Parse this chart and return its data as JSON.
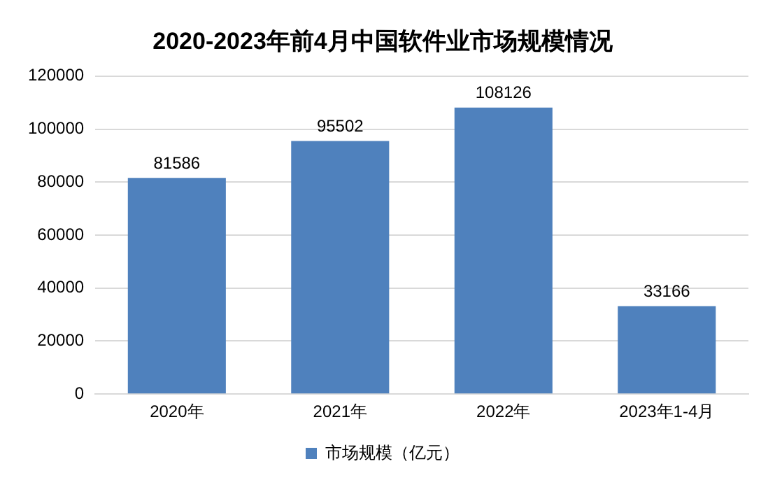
{
  "chart_data": {
    "type": "bar",
    "title": "2020-2023年前4月中国软件业市场规模情况",
    "categories": [
      "2020年",
      "2021年",
      "2022年",
      "2023年1-4月"
    ],
    "series": [
      {
        "name": "市场规模（亿元）",
        "color": "#4f81bd",
        "values": [
          81586,
          95502,
          108126,
          33166
        ]
      }
    ],
    "ylim": [
      0,
      120000
    ],
    "yticks": [
      0,
      20000,
      40000,
      60000,
      80000,
      100000,
      120000
    ],
    "grid": "y",
    "legend": "bottom",
    "data_labels": true
  }
}
